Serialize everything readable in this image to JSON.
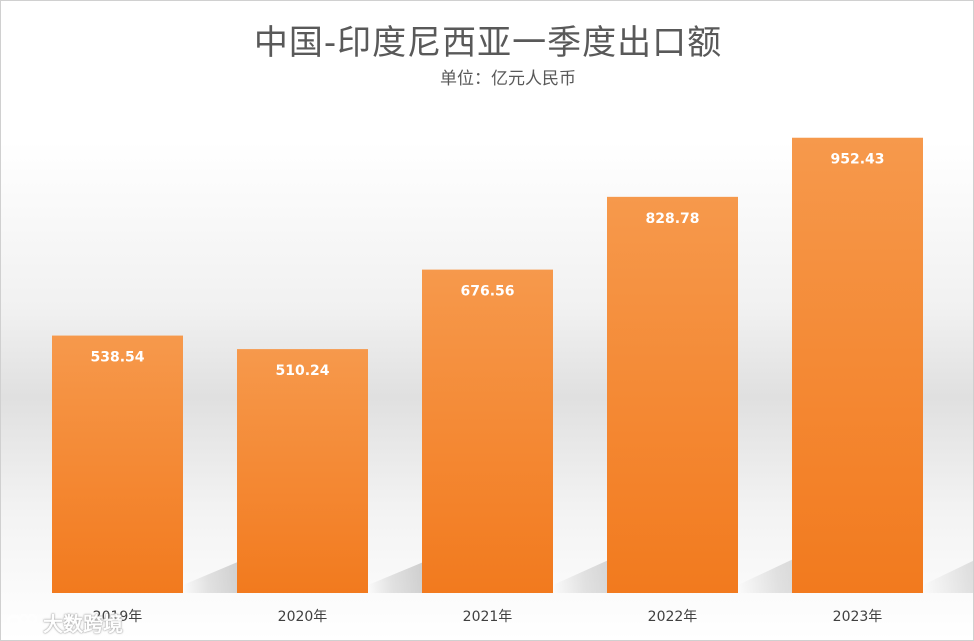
{
  "chart_data": {
    "type": "bar",
    "title": "中国-印度尼西亚一季度出口额",
    "subtitle": "单位：亿元人民币",
    "categories": [
      "2019年",
      "2020年",
      "2021年",
      "2022年",
      "2023年"
    ],
    "values": [
      538.54,
      510.24,
      676.56,
      828.78,
      952.43
    ],
    "value_labels": [
      "538.54",
      "510.24",
      "676.56",
      "828.78",
      "952.43"
    ],
    "ylim": [
      0,
      1000
    ],
    "grid": false,
    "legend": "none",
    "bar_color_top": "#f6994c",
    "bar_color_bottom": "#f27a1e",
    "label_color": "#ffffff"
  },
  "watermark": {
    "icon": "logo-icon",
    "text": "大数跨境"
  }
}
